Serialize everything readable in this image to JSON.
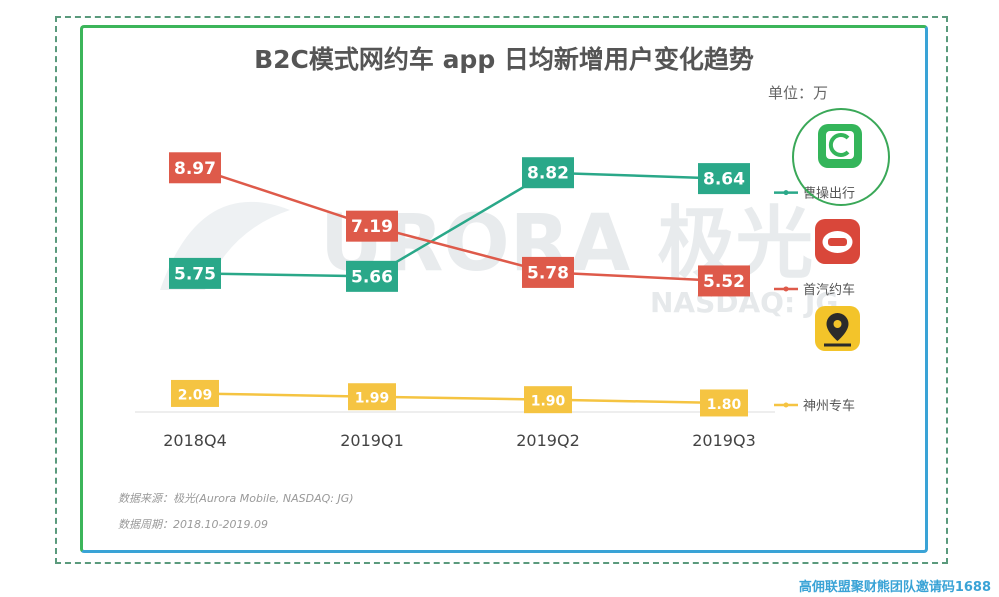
{
  "chart_data": {
    "type": "line",
    "title": "B2C模式网约车 app 日均新增用户变化趋势",
    "unit_label": "单位：万",
    "categories": [
      "2018Q4",
      "2019Q1",
      "2019Q2",
      "2019Q3"
    ],
    "ylim": [
      0,
      11
    ],
    "series": [
      {
        "name": "曹操出行",
        "color": "#2aa889",
        "values": [
          5.75,
          5.66,
          8.82,
          8.64
        ],
        "labels": [
          "5.75",
          "5.66",
          "8.82",
          "8.64"
        ]
      },
      {
        "name": "首汽约车",
        "color": "#de5a4a",
        "values": [
          8.97,
          7.19,
          5.78,
          5.52
        ],
        "labels": [
          "8.97",
          "7.19",
          "5.78",
          "5.52"
        ]
      },
      {
        "name": "神州专车",
        "color": "#f5c442",
        "values": [
          2.09,
          1.99,
          1.9,
          1.8
        ],
        "labels": [
          "2.09",
          "1.99",
          "1.90",
          "1.80"
        ]
      }
    ],
    "legend_position": "right",
    "grid": false
  },
  "source_text": "数据来源：极光(Aurora Mobile, NASDAQ: JG)",
  "period_text": "数据周期：2018.10-2019.09",
  "watermark": {
    "line1": "URORA 极光",
    "line2": "NASDAQ: JG"
  },
  "footer_text": "高佣联盟聚财熊团队邀请码1688"
}
